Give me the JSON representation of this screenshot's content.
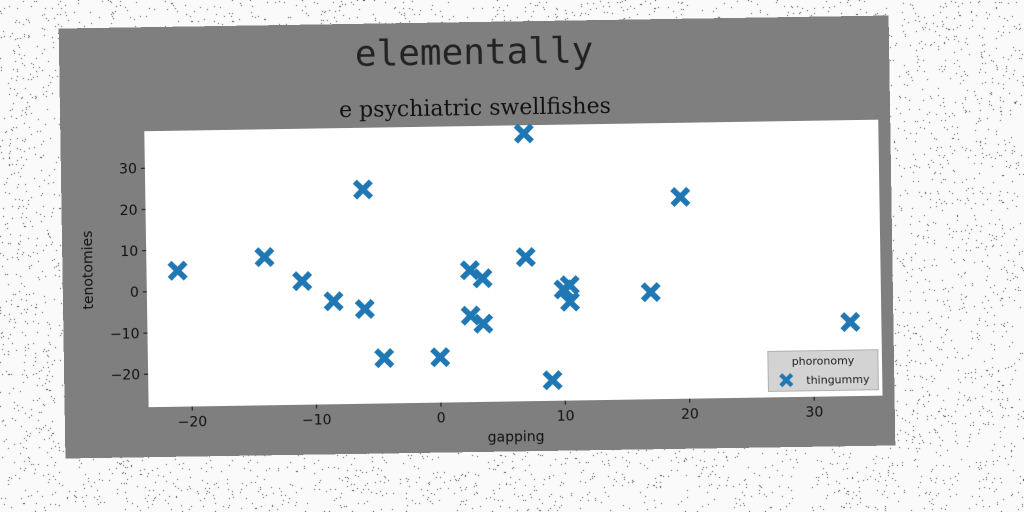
{
  "chart_data": {
    "type": "scatter",
    "title": "elementally",
    "subtitle": "e psychiatric swellfishes",
    "xlabel": "gapping",
    "ylabel": "tenotomies",
    "xlim": [
      -23.5,
      35.5
    ],
    "ylim": [
      -28,
      39
    ],
    "xticks": [
      -20,
      -10,
      0,
      10,
      20,
      30
    ],
    "yticks": [
      -20,
      -10,
      0,
      10,
      20,
      30
    ],
    "grid": false,
    "legend": {
      "title": "phoronomy",
      "placement": "lower-right"
    },
    "series": [
      {
        "name": "thingummy",
        "marker": "X",
        "color": "#1f77b4",
        "points": [
          [
            -21,
            5
          ],
          [
            -14,
            8
          ],
          [
            -11,
            2
          ],
          [
            -8.5,
            -3
          ],
          [
            -6,
            24
          ],
          [
            -6,
            -5
          ],
          [
            -4.5,
            -17
          ],
          [
            0,
            -17
          ],
          [
            2.5,
            4
          ],
          [
            2.5,
            -7
          ],
          [
            3.5,
            2
          ],
          [
            3.5,
            -9
          ],
          [
            7,
            37
          ],
          [
            7,
            7
          ],
          [
            9,
            -23
          ],
          [
            10,
            -1
          ],
          [
            10.5,
            0
          ],
          [
            10.5,
            -4
          ],
          [
            17,
            -2
          ],
          [
            19.5,
            21
          ],
          [
            33,
            -10
          ]
        ]
      }
    ]
  }
}
